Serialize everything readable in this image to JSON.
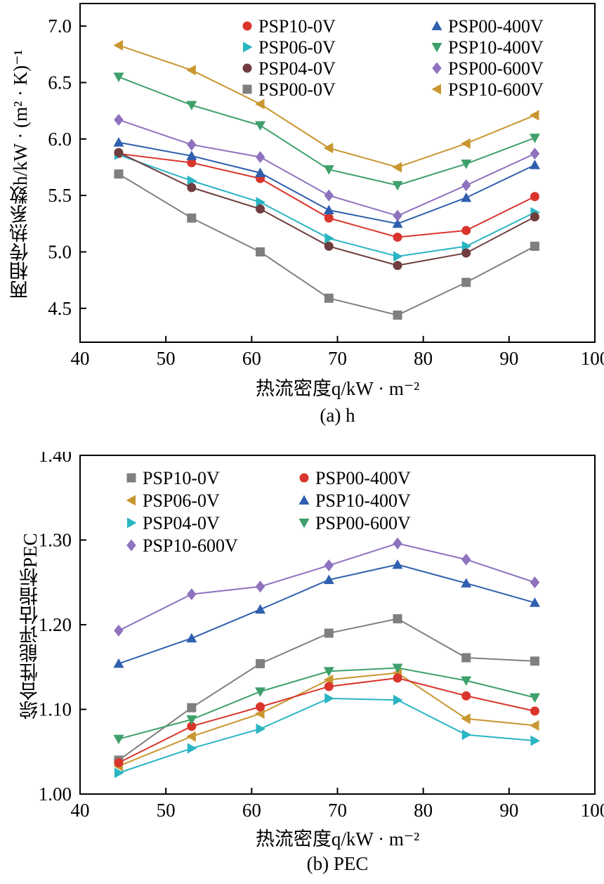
{
  "page": {
    "background": "#ffffff"
  },
  "chart_data": [
    {
      "id": "chart-a",
      "type": "line",
      "caption": "(a) h",
      "xlabel": "热流密度q/kW · m⁻²",
      "ylabel": "两相传热系数h/kW · (m² · K)⁻¹",
      "xlim": [
        40,
        100
      ],
      "ylim": [
        4.2,
        7.2
      ],
      "xticks": [
        40,
        50,
        60,
        70,
        80,
        90,
        100
      ],
      "xtick_labels": [
        "40",
        "50",
        "60",
        "70",
        "80",
        "90",
        "100"
      ],
      "yticks": [
        4.5,
        5.0,
        5.5,
        6.0,
        6.5,
        7.0
      ],
      "ytick_labels": [
        "4.5",
        "5.0",
        "5.5",
        "6.0",
        "6.5",
        "7.0"
      ],
      "grid": false,
      "legend_position": "top-inside-two-columns",
      "x": [
        44.5,
        53,
        61,
        69,
        77,
        85,
        93
      ],
      "series": [
        {
          "name": "PSP10-0V",
          "marker": "circle",
          "color": "#d9352c",
          "legend_col": 0,
          "legend_row": 0,
          "values": [
            5.87,
            5.79,
            5.65,
            5.3,
            5.13,
            5.19,
            5.49
          ]
        },
        {
          "name": "PSP06-0V",
          "marker": "triangle-right",
          "color": "#2ab5c3",
          "legend_col": 0,
          "legend_row": 1,
          "values": [
            5.86,
            5.63,
            5.44,
            5.12,
            4.96,
            5.05,
            5.35
          ]
        },
        {
          "name": "PSP04-0V",
          "marker": "circle",
          "color": "#6f3d3e",
          "legend_col": 0,
          "legend_row": 2,
          "values": [
            5.88,
            5.57,
            5.38,
            5.05,
            4.88,
            4.99,
            5.31
          ]
        },
        {
          "name": "PSP00-0V",
          "marker": "square",
          "color": "#7f7f7f",
          "legend_col": 0,
          "legend_row": 3,
          "values": [
            5.69,
            5.3,
            5.0,
            4.59,
            4.44,
            4.73,
            5.05
          ]
        },
        {
          "name": "PSP00-400V",
          "marker": "triangle-up",
          "color": "#2f5fae",
          "legend_col": 1,
          "legend_row": 0,
          "values": [
            5.97,
            5.85,
            5.7,
            5.37,
            5.25,
            5.48,
            5.77
          ]
        },
        {
          "name": "PSP10-400V",
          "marker": "triangle-down",
          "color": "#3ea06b",
          "legend_col": 1,
          "legend_row": 1,
          "values": [
            6.55,
            6.3,
            6.12,
            5.73,
            5.59,
            5.78,
            6.01
          ]
        },
        {
          "name": "PSP00-600V",
          "marker": "diamond",
          "color": "#8f72be",
          "legend_col": 1,
          "legend_row": 2,
          "values": [
            6.17,
            5.95,
            5.84,
            5.5,
            5.32,
            5.59,
            5.87
          ]
        },
        {
          "name": "PSP10-600V",
          "marker": "triangle-left",
          "color": "#c9962f",
          "legend_col": 1,
          "legend_row": 3,
          "values": [
            6.83,
            6.61,
            6.31,
            5.92,
            5.75,
            5.96,
            6.21
          ]
        }
      ]
    },
    {
      "id": "chart-b",
      "type": "line",
      "caption": "(b) PEC",
      "xlabel": "热流密度q/kW · m⁻²",
      "ylabel": "综合性能评估指标PEC",
      "xlim": [
        40,
        100
      ],
      "ylim": [
        1.0,
        1.4
      ],
      "xticks": [
        40,
        50,
        60,
        70,
        80,
        90,
        100
      ],
      "xtick_labels": [
        "40",
        "50",
        "60",
        "70",
        "80",
        "90",
        "100"
      ],
      "yticks": [
        1.0,
        1.1,
        1.2,
        1.3,
        1.4
      ],
      "ytick_labels": [
        "1.00",
        "1.10",
        "1.20",
        "1.30",
        "1.40"
      ],
      "grid": false,
      "legend_position": "top-inside-two-columns",
      "x": [
        44.5,
        53,
        61,
        69,
        77,
        85,
        93
      ],
      "series": [
        {
          "name": "PSP10-0V",
          "marker": "square",
          "color": "#7f7f7f",
          "legend_col": 0,
          "legend_row": 0,
          "values": [
            1.04,
            1.102,
            1.154,
            1.19,
            1.207,
            1.161,
            1.157
          ]
        },
        {
          "name": "PSP06-0V",
          "marker": "triangle-left",
          "color": "#c9962f",
          "legend_col": 0,
          "legend_row": 1,
          "values": [
            1.033,
            1.068,
            1.095,
            1.135,
            1.143,
            1.089,
            1.081
          ]
        },
        {
          "name": "PSP04-0V",
          "marker": "triangle-right",
          "color": "#2ab5c3",
          "legend_col": 0,
          "legend_row": 2,
          "values": [
            1.025,
            1.054,
            1.077,
            1.113,
            1.111,
            1.07,
            1.063
          ]
        },
        {
          "name": "PSP10-600V",
          "marker": "diamond",
          "color": "#8f72be",
          "legend_col": 0,
          "legend_row": 3,
          "values": [
            1.193,
            1.236,
            1.245,
            1.27,
            1.296,
            1.277,
            1.25
          ]
        },
        {
          "name": "PSP00-400V",
          "marker": "circle",
          "color": "#d9352c",
          "legend_col": 1,
          "legend_row": 0,
          "values": [
            1.037,
            1.08,
            1.103,
            1.127,
            1.137,
            1.116,
            1.098
          ]
        },
        {
          "name": "PSP10-400V",
          "marker": "triangle-up",
          "color": "#2f5fae",
          "legend_col": 1,
          "legend_row": 1,
          "values": [
            1.154,
            1.184,
            1.218,
            1.253,
            1.271,
            1.249,
            1.226
          ]
        },
        {
          "name": "PSP00-600V",
          "marker": "triangle-down",
          "color": "#3ea06b",
          "legend_col": 1,
          "legend_row": 2,
          "values": [
            1.065,
            1.088,
            1.121,
            1.145,
            1.149,
            1.134,
            1.114
          ]
        }
      ]
    }
  ]
}
